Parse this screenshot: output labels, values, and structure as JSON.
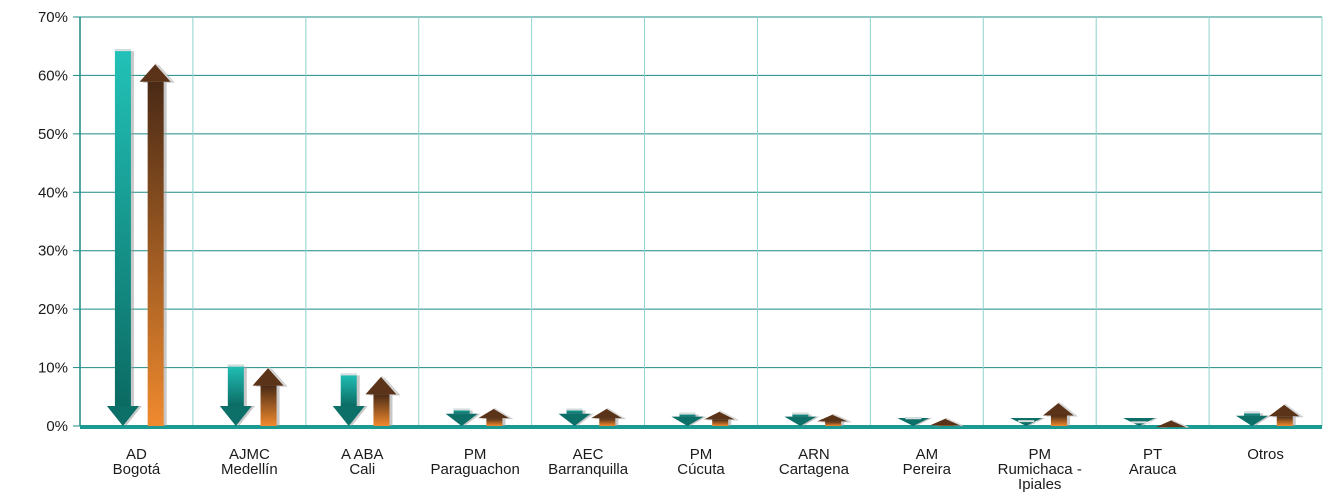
{
  "chart_data": {
    "type": "bar",
    "title": "",
    "xlabel": "",
    "ylabel": "",
    "ylim": [
      0,
      70
    ],
    "y_ticks": [
      "0%",
      "10%",
      "20%",
      "30%",
      "40%",
      "50%",
      "60%",
      "70%"
    ],
    "grid": true,
    "legend": "none",
    "categories": [
      [
        "AD",
        "Bogotá"
      ],
      [
        "AJMC",
        "Medellín"
      ],
      [
        "A ABA",
        "Cali"
      ],
      [
        "PM",
        "Paraguachon"
      ],
      [
        "AEC",
        "Barranquilla"
      ],
      [
        "PM",
        "Cúcuta"
      ],
      [
        "ARN",
        "Cartagena"
      ],
      [
        "AM",
        "Pereira"
      ],
      [
        "PM",
        "Rumichaca -",
        "Ipiales"
      ],
      [
        "PT",
        "Arauca"
      ],
      [
        "Otros"
      ]
    ],
    "series": [
      {
        "direction": "down",
        "color": "#1a9a92",
        "values": [
          64.5,
          10.5,
          9.0,
          3.0,
          3.0,
          2.3,
          2.3,
          1.5,
          1.0,
          0.8,
          2.5
        ]
      },
      {
        "direction": "up",
        "color": "#e8892e",
        "values": [
          62.0,
          10.0,
          8.5,
          3.0,
          3.0,
          2.5,
          2.0,
          1.3,
          4.0,
          1.0,
          3.7
        ]
      }
    ]
  }
}
